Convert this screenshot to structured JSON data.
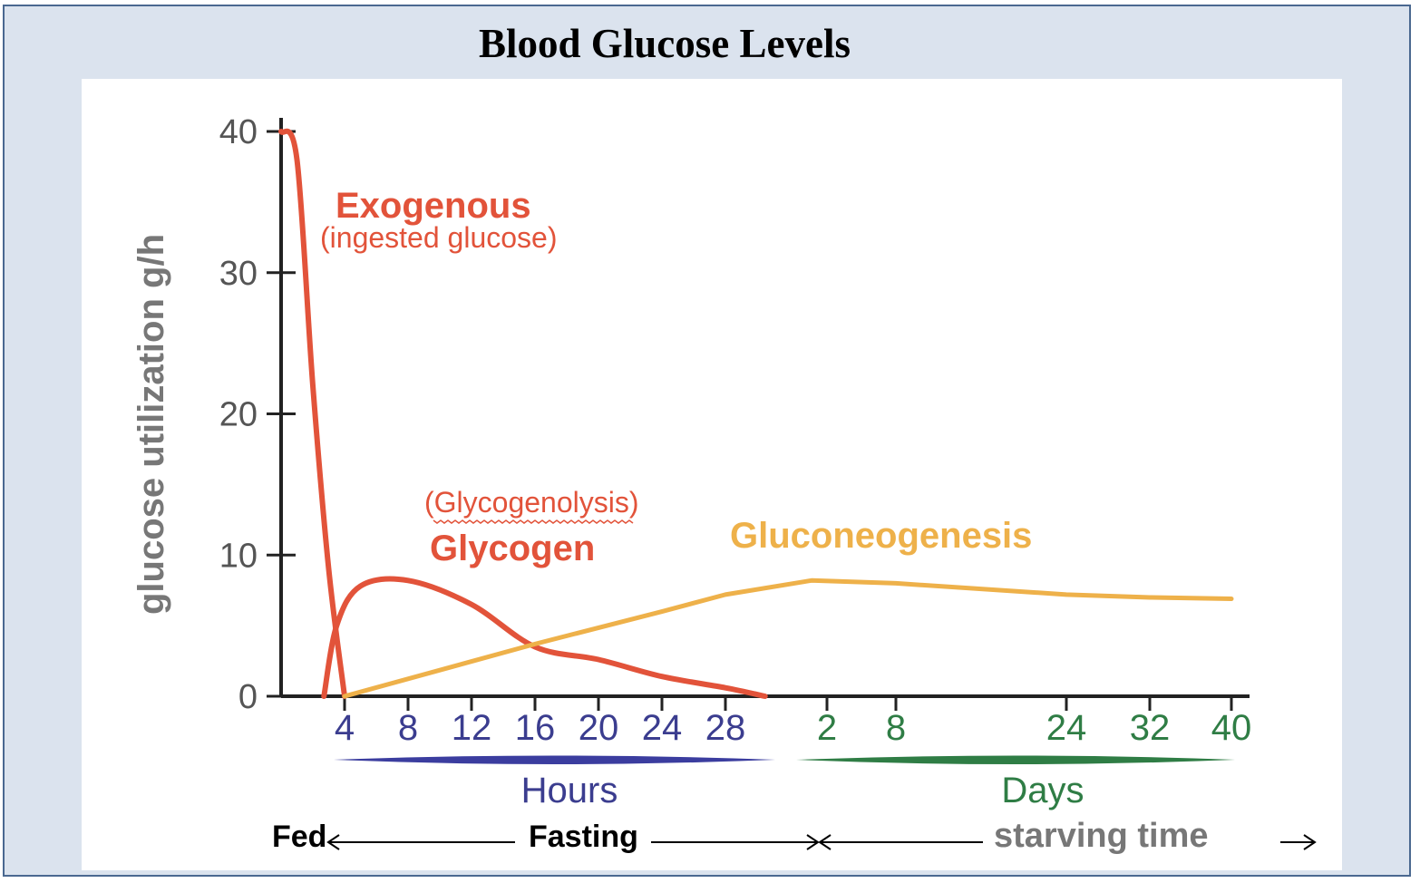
{
  "colors": {
    "exogenous": "#e2533a",
    "glycogen": "#e2533a",
    "gluconeogenesis": "#eeb14a",
    "hours_band": "#3b3d9f",
    "days_band": "#2f7d45",
    "frame_bg": "#dbe3ee",
    "frame_border": "#4a6890"
  },
  "chart_data": {
    "type": "line",
    "title": "Blood Glucose Levels",
    "ylabel": "glucose utilization g/h",
    "ylim": [
      0,
      40
    ],
    "y_ticks": [
      "0",
      "10",
      "20",
      "30",
      "40"
    ],
    "x_axis": {
      "hours_ticks": [
        "4",
        "8",
        "12",
        "16",
        "20",
        "24",
        "28"
      ],
      "days_ticks": [
        "2",
        "8",
        "24",
        "32",
        "40"
      ],
      "hours_label": "Hours",
      "days_label": "Days"
    },
    "series": [
      {
        "name": "Exogenous",
        "subtitle": "(ingested glucose)",
        "unit": "hours",
        "points": [
          [
            0,
            40
          ],
          [
            1,
            38
          ],
          [
            2,
            22
          ],
          [
            3,
            9
          ],
          [
            4,
            0
          ]
        ]
      },
      {
        "name": "Glycogen",
        "subtitle": "(Glycogenolysis)",
        "unit": "hours",
        "points": [
          [
            2.7,
            0
          ],
          [
            3.5,
            5
          ],
          [
            5,
            7.8
          ],
          [
            8,
            8.2
          ],
          [
            12,
            6.5
          ],
          [
            16,
            3.5
          ],
          [
            20,
            2.6
          ],
          [
            24,
            1.4
          ],
          [
            28,
            0.6
          ],
          [
            30.5,
            0
          ]
        ]
      },
      {
        "name": "Gluconeogenesis",
        "unit": "hours-then-days",
        "points": [
          [
            "h",
            4,
            0
          ],
          [
            "h",
            16,
            3.7
          ],
          [
            "h",
            24,
            6
          ],
          [
            "h",
            28,
            7.2
          ],
          [
            "d",
            1,
            8.2
          ],
          [
            "d",
            8,
            8
          ],
          [
            "d",
            24,
            7.2
          ],
          [
            "d",
            32,
            7
          ],
          [
            "d",
            40,
            6.9
          ]
        ]
      }
    ]
  },
  "labels": {
    "exogenous": "Exogenous",
    "exogenous_sub": "(ingested glucose)",
    "glycogen_sub": "(Glycogenolysis)",
    "glycogen": "Glycogen",
    "gluconeogenesis": "Gluconeogenesis"
  },
  "timeline": {
    "fed": "Fed",
    "fasting": "Fasting",
    "starving": "starving time"
  }
}
